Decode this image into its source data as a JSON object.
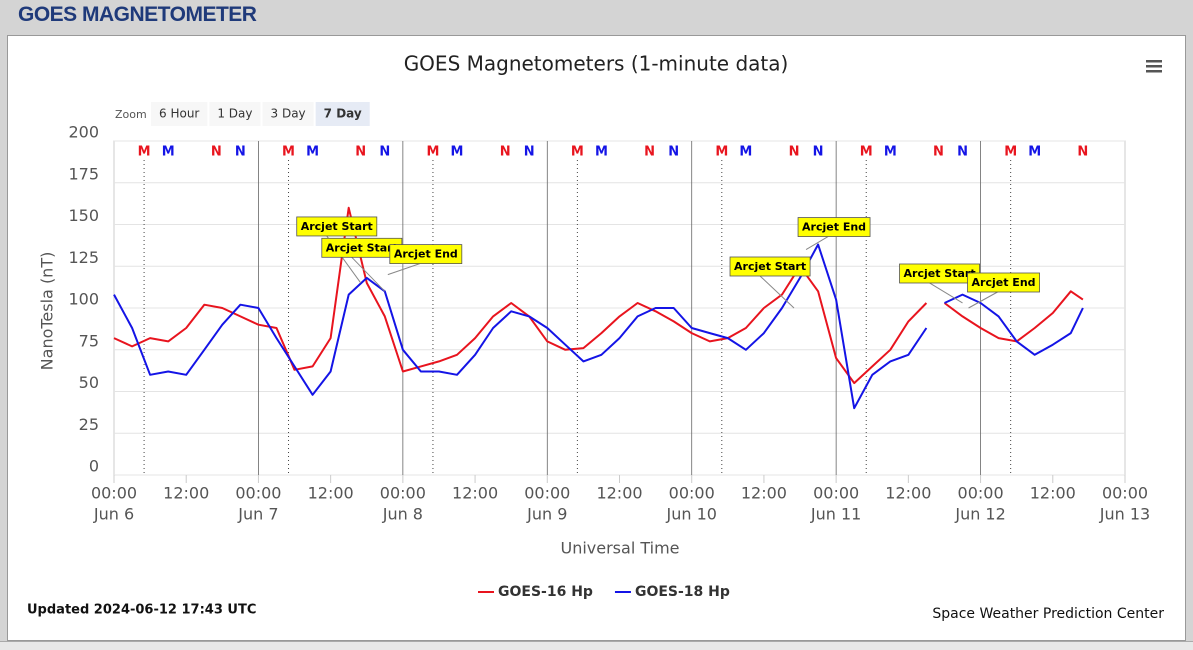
{
  "header": {
    "title": "GOES MAGNETOMETER"
  },
  "chart_data": {
    "type": "line",
    "title": "GOES Magnetometers (1-minute data)",
    "zoom": {
      "label": "Zoom",
      "buttons": [
        "6 Hour",
        "1 Day",
        "3 Day",
        "7 Day"
      ],
      "selected": 3
    },
    "y_label": "NanoTesla (nT)",
    "x_label": "Universal Time",
    "ylim": [
      0,
      200
    ],
    "yticks": [
      0,
      25,
      50,
      75,
      100,
      125,
      150,
      175,
      200
    ],
    "xlim": [
      "Jun 6 00:00",
      "Jun 13 00:00"
    ],
    "xticks": [
      {
        "value": "Jun 6 00:00",
        "label": [
          "00:00",
          "Jun 6"
        ]
      },
      {
        "value": "Jun 6 12:00",
        "label": "12:00"
      },
      {
        "value": "Jun 7 00:00",
        "label": [
          "00:00",
          "Jun 7"
        ]
      },
      {
        "value": "Jun 7 12:00",
        "label": "12:00"
      },
      {
        "value": "Jun 8 00:00",
        "label": [
          "00:00",
          "Jun 8"
        ]
      },
      {
        "value": "Jun 8 12:00",
        "label": "12:00"
      },
      {
        "value": "Jun 9 00:00",
        "label": [
          "00:00",
          "Jun 9"
        ]
      },
      {
        "value": "Jun 9 12:00",
        "label": "12:00"
      },
      {
        "value": "Jun 10 00:00",
        "label": [
          "00:00",
          "Jun 10"
        ]
      },
      {
        "value": "Jun 10 12:00",
        "label": "12:00"
      },
      {
        "value": "Jun 11 00:00",
        "label": [
          "00:00",
          "Jun 11"
        ]
      },
      {
        "value": "Jun 11 12:00",
        "label": "12:00"
      },
      {
        "value": "Jun 12 00:00",
        "label": [
          "00:00",
          "Jun 12"
        ]
      },
      {
        "value": "Jun 12 12:00",
        "label": "12:00"
      },
      {
        "value": "Jun 13 00:00",
        "label": [
          "00:00",
          "Jun 13"
        ]
      }
    ],
    "grid": true,
    "x": [
      "Jun 6 00:00",
      "Jun 6 03:00",
      "Jun 6 06:00",
      "Jun 6 09:00",
      "Jun 6 12:00",
      "Jun 6 15:00",
      "Jun 6 18:00",
      "Jun 6 21:00",
      "Jun 7 00:00",
      "Jun 7 03:00",
      "Jun 7 06:00",
      "Jun 7 09:00",
      "Jun 7 12:00",
      "Jun 7 15:00",
      "Jun 7 18:00",
      "Jun 7 21:00",
      "Jun 8 00:00",
      "Jun 8 03:00",
      "Jun 8 06:00",
      "Jun 8 09:00",
      "Jun 8 12:00",
      "Jun 8 15:00",
      "Jun 8 18:00",
      "Jun 8 21:00",
      "Jun 9 00:00",
      "Jun 9 03:00",
      "Jun 9 06:00",
      "Jun 9 09:00",
      "Jun 9 12:00",
      "Jun 9 15:00",
      "Jun 9 18:00",
      "Jun 9 21:00",
      "Jun 10 00:00",
      "Jun 10 03:00",
      "Jun 10 06:00",
      "Jun 10 09:00",
      "Jun 10 12:00",
      "Jun 10 15:00",
      "Jun 10 18:00",
      "Jun 10 21:00",
      "Jun 11 00:00",
      "Jun 11 03:00",
      "Jun 11 06:00",
      "Jun 11 09:00",
      "Jun 11 12:00",
      "Jun 11 15:00",
      "Jun 11 16:30",
      "Jun 11 18:00",
      "Jun 11 21:00",
      "Jun 12 00:00",
      "Jun 12 03:00",
      "Jun 12 06:00",
      "Jun 12 09:00",
      "Jun 12 12:00",
      "Jun 12 15:00",
      "Jun 12 17:00"
    ],
    "series": [
      {
        "name": "GOES-16 Hp",
        "color": "#e8141e",
        "values": [
          82,
          77,
          82,
          80,
          88,
          102,
          100,
          95,
          90,
          88,
          63,
          65,
          82,
          160,
          115,
          95,
          62,
          65,
          68,
          72,
          82,
          95,
          103,
          95,
          80,
          75,
          76,
          85,
          95,
          103,
          98,
          92,
          85,
          80,
          82,
          88,
          100,
          108,
          125,
          110,
          70,
          55,
          65,
          75,
          92,
          103,
          null,
          103,
          95,
          88,
          82,
          80,
          88,
          97,
          110,
          105
        ]
      },
      {
        "name": "GOES-18 Hp",
        "color": "#1414e6",
        "values": [
          108,
          88,
          60,
          62,
          60,
          75,
          90,
          102,
          100,
          82,
          65,
          48,
          62,
          108,
          118,
          110,
          75,
          62,
          62,
          60,
          72,
          88,
          98,
          95,
          88,
          78,
          68,
          72,
          82,
          95,
          100,
          100,
          88,
          85,
          82,
          75,
          85,
          100,
          118,
          138,
          105,
          40,
          60,
          68,
          72,
          88,
          null,
          103,
          108,
          103,
          95,
          80,
          72,
          78,
          85,
          100
        ]
      }
    ],
    "markers": [
      {
        "label": "M",
        "x": "Jun 6 05:00",
        "color": "#e8141e",
        "line": "dotted"
      },
      {
        "label": "M",
        "x": "Jun 6 09:00",
        "color": "#1414e6"
      },
      {
        "label": "N",
        "x": "Jun 6 17:00",
        "color": "#e8141e"
      },
      {
        "label": "N",
        "x": "Jun 6 21:00",
        "color": "#1414e6"
      },
      {
        "label": "M",
        "x": "Jun 7 05:00",
        "color": "#e8141e",
        "line": "dotted"
      },
      {
        "label": "M",
        "x": "Jun 7 09:00",
        "color": "#1414e6"
      },
      {
        "label": "N",
        "x": "Jun 7 17:00",
        "color": "#e8141e"
      },
      {
        "label": "N",
        "x": "Jun 7 21:00",
        "color": "#1414e6"
      },
      {
        "label": "M",
        "x": "Jun 8 05:00",
        "color": "#e8141e",
        "line": "dotted"
      },
      {
        "label": "M",
        "x": "Jun 8 09:00",
        "color": "#1414e6"
      },
      {
        "label": "N",
        "x": "Jun 8 17:00",
        "color": "#e8141e"
      },
      {
        "label": "N",
        "x": "Jun 8 21:00",
        "color": "#1414e6"
      },
      {
        "label": "M",
        "x": "Jun 9 05:00",
        "color": "#e8141e",
        "line": "dotted"
      },
      {
        "label": "M",
        "x": "Jun 9 09:00",
        "color": "#1414e6"
      },
      {
        "label": "N",
        "x": "Jun 9 17:00",
        "color": "#e8141e"
      },
      {
        "label": "N",
        "x": "Jun 9 21:00",
        "color": "#1414e6"
      },
      {
        "label": "M",
        "x": "Jun 10 05:00",
        "color": "#e8141e",
        "line": "dotted"
      },
      {
        "label": "M",
        "x": "Jun 10 09:00",
        "color": "#1414e6"
      },
      {
        "label": "N",
        "x": "Jun 10 17:00",
        "color": "#e8141e"
      },
      {
        "label": "N",
        "x": "Jun 10 21:00",
        "color": "#1414e6"
      },
      {
        "label": "M",
        "x": "Jun 11 05:00",
        "color": "#e8141e",
        "line": "dotted"
      },
      {
        "label": "M",
        "x": "Jun 11 09:00",
        "color": "#1414e6"
      },
      {
        "label": "N",
        "x": "Jun 11 17:00",
        "color": "#e8141e"
      },
      {
        "label": "N",
        "x": "Jun 11 21:00",
        "color": "#1414e6"
      },
      {
        "label": "M",
        "x": "Jun 12 05:00",
        "color": "#e8141e",
        "line": "dotted"
      },
      {
        "label": "M",
        "x": "Jun 12 09:00",
        "color": "#1414e6"
      },
      {
        "label": "N",
        "x": "Jun 12 17:00",
        "color": "#e8141e"
      }
    ],
    "annotations": [
      {
        "text": "Arcjet Start",
        "x": "Jun 7 17:00",
        "y": 115
      },
      {
        "text": "Arcjet Start",
        "x": "Jun 7 21:00",
        "y": 110
      },
      {
        "text": "Arcjet End",
        "x": "Jun 7 21:30",
        "y": 120
      },
      {
        "text": "Arcjet Start",
        "x": "Jun 10 17:00",
        "y": 100
      },
      {
        "text": "Arcjet End",
        "x": "Jun 10 19:00",
        "y": 135
      },
      {
        "text": "Arcjet Start",
        "x": "Jun 11 21:00",
        "y": 103
      },
      {
        "text": "Arcjet End",
        "x": "Jun 11 22:00",
        "y": 100
      }
    ],
    "updated": "Updated 2024-06-12 17:43 UTC",
    "credit": "Space Weather Prediction Center"
  }
}
